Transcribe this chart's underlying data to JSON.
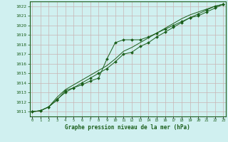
{
  "title": "Graphe pression niveau de la mer (hPa)",
  "hours": [
    0,
    1,
    2,
    3,
    4,
    5,
    6,
    7,
    8,
    9,
    10,
    11,
    12,
    13,
    14,
    15,
    16,
    17,
    18,
    19,
    20,
    21,
    22,
    23
  ],
  "ylim": [
    1010.5,
    1022.5
  ],
  "yticks": [
    1011,
    1012,
    1013,
    1014,
    1015,
    1016,
    1017,
    1018,
    1019,
    1020,
    1021,
    1022
  ],
  "background_color": "#d0f0f0",
  "grid_color": "#c8b4b4",
  "line_color": "#1a5e1a",
  "line1": [
    1011.0,
    1011.1,
    1011.5,
    1012.2,
    1013.2,
    1013.5,
    1013.8,
    1014.2,
    1014.5,
    1016.5,
    1018.2,
    1018.5,
    1018.5,
    1018.5,
    1018.8,
    1019.2,
    1019.6,
    1020.0,
    1020.4,
    1020.8,
    1021.2,
    1021.6,
    1022.0,
    1022.2
  ],
  "line2": [
    1011.0,
    1011.1,
    1011.5,
    1012.3,
    1013.0,
    1013.5,
    1014.0,
    1014.5,
    1015.0,
    1015.5,
    1016.2,
    1017.0,
    1017.2,
    1017.8,
    1018.2,
    1018.8,
    1019.3,
    1019.8,
    1020.3,
    1020.8,
    1021.0,
    1021.4,
    1021.8,
    1022.2
  ],
  "line3": [
    1011.0,
    1011.1,
    1011.5,
    1012.5,
    1013.3,
    1013.8,
    1014.3,
    1014.8,
    1015.3,
    1015.8,
    1016.5,
    1017.3,
    1017.7,
    1018.2,
    1018.7,
    1019.2,
    1019.7,
    1020.2,
    1020.7,
    1021.1,
    1021.4,
    1021.7,
    1022.0,
    1022.2
  ],
  "marker": "D",
  "marker_size": 2.0,
  "lw": 0.7
}
